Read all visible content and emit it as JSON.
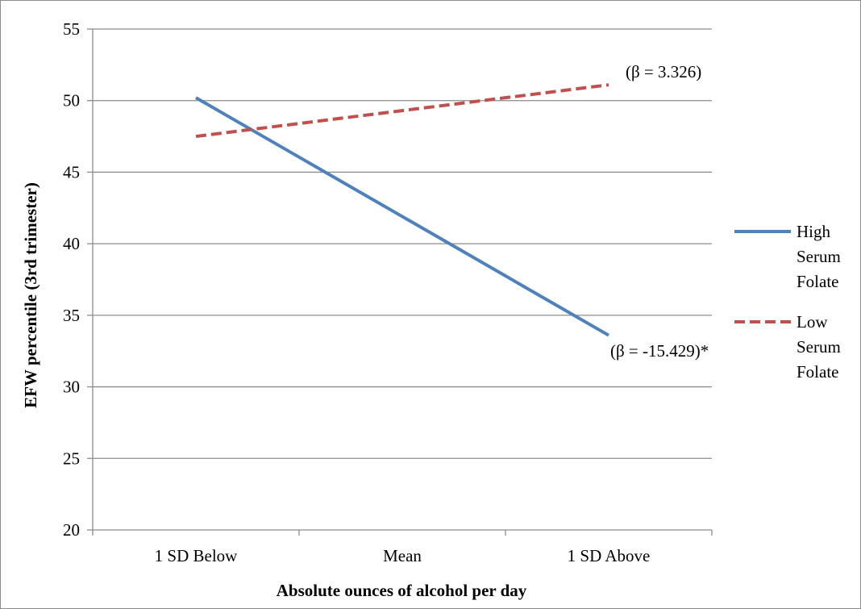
{
  "chart_data": {
    "type": "line",
    "categories": [
      "1 SD Below",
      "Mean",
      "1 SD Above"
    ],
    "series": [
      {
        "name": "High Serum Folate",
        "name_lines": [
          "High",
          "Serum",
          "Folate"
        ],
        "values": [
          50.2,
          41.9,
          33.6
        ],
        "color": "#4f81bd",
        "dash": "solid"
      },
      {
        "name": "Low Serum Folate",
        "name_lines": [
          "Low",
          "Serum",
          "Folate"
        ],
        "values": [
          47.5,
          49.3,
          51.1
        ],
        "color": "#c0504d",
        "dash": "dashed"
      }
    ],
    "xlabel": "Absolute ounces of alcohol per day",
    "ylabel": "EFW percentile (3rd trimester)",
    "ylim": [
      20,
      55
    ],
    "yticks": [
      "20",
      "25",
      "30",
      "35",
      "40",
      "45",
      "50",
      "55"
    ],
    "grid": true,
    "legend_position": "right",
    "annotations": [
      {
        "text": "(β = 3.326)",
        "series": "Low Serum Folate"
      },
      {
        "text": "(β = -15.429)*",
        "series": "High Serum Folate"
      }
    ]
  }
}
